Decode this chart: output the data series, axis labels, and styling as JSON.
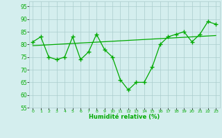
{
  "title": "",
  "xlabel": "Humidité relative (%)",
  "ylabel": "",
  "background_color": "#d4eeee",
  "grid_color": "#aacccc",
  "line_color": "#00aa00",
  "xlim": [
    -0.5,
    23.5
  ],
  "ylim": [
    55,
    97
  ],
  "yticks": [
    55,
    60,
    65,
    70,
    75,
    80,
    85,
    90,
    95
  ],
  "xticks": [
    0,
    1,
    2,
    3,
    4,
    5,
    6,
    7,
    8,
    9,
    10,
    11,
    12,
    13,
    14,
    15,
    16,
    17,
    18,
    19,
    20,
    21,
    22,
    23
  ],
  "x": [
    0,
    1,
    2,
    3,
    4,
    5,
    6,
    7,
    8,
    9,
    10,
    11,
    12,
    13,
    14,
    15,
    16,
    17,
    18,
    19,
    20,
    21,
    22,
    23
  ],
  "y_main": [
    81,
    83,
    75,
    74,
    75,
    83,
    74,
    77,
    84,
    78,
    75,
    66,
    62,
    65,
    65,
    71,
    80,
    83,
    84,
    85,
    81,
    84,
    89,
    88
  ],
  "y_trend_x": [
    0,
    23
  ],
  "y_trend_y": [
    79.5,
    83.5
  ]
}
